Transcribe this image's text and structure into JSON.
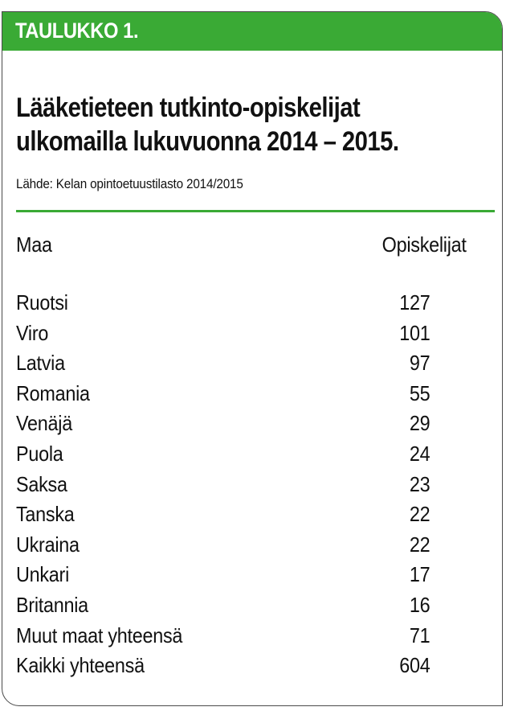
{
  "header": {
    "label": "TAULUKKO 1."
  },
  "colors": {
    "accent": "#3aaa35",
    "border": "#4a4a4a",
    "text": "#111111"
  },
  "chart_data": {
    "type": "table",
    "title": "Lääketieteen tutkinto-opiskelijat\nulkomailla lukuvuonna 2014 – 2015.",
    "source": "Lähde: Kelan opintoetuustilasto 2014/2015",
    "columns": [
      "Maa",
      "Opiskelijat"
    ],
    "rows": [
      {
        "country": "Ruotsi",
        "students": 127
      },
      {
        "country": "Viro",
        "students": 101
      },
      {
        "country": "Latvia",
        "students": 97
      },
      {
        "country": "Romania",
        "students": 55
      },
      {
        "country": "Venäjä",
        "students": 29
      },
      {
        "country": "Puola",
        "students": 24
      },
      {
        "country": "Saksa",
        "students": 23
      },
      {
        "country": "Tanska",
        "students": 22
      },
      {
        "country": "Ukraina",
        "students": 22
      },
      {
        "country": "Unkari",
        "students": 17
      },
      {
        "country": "Britannia",
        "students": 16
      },
      {
        "country": "Muut maat yhteensä",
        "students": 71
      },
      {
        "country": "Kaikki yhteensä",
        "students": 604
      }
    ]
  }
}
